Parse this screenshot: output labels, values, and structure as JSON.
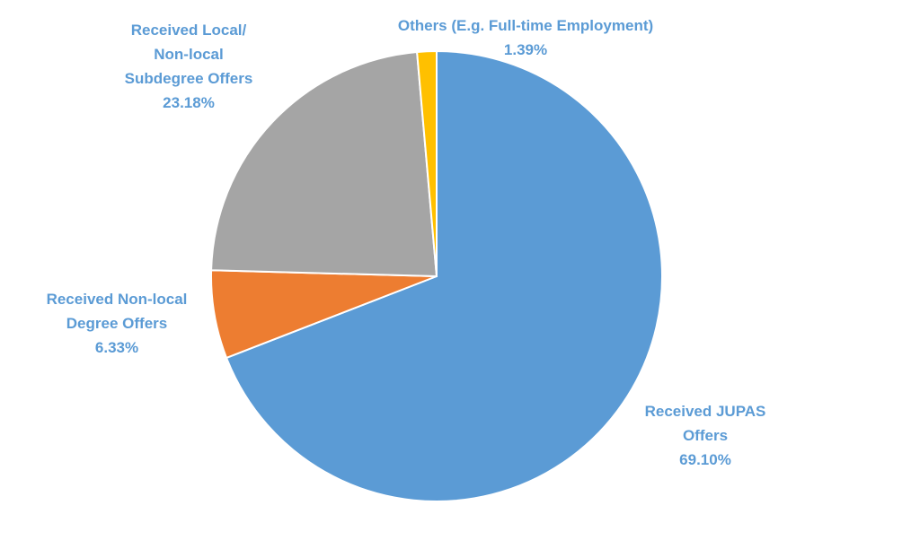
{
  "chart_data": {
    "type": "pie",
    "title": "",
    "start_angle_deg": 0,
    "direction": "clockwise",
    "slices": [
      {
        "label_lines": [
          "Received JUPAS",
          "Offers"
        ],
        "value": 69.1,
        "value_label": "69.10%",
        "color": "#5b9bd5"
      },
      {
        "label_lines": [
          "Received Non-local",
          "Degree Offers"
        ],
        "value": 6.33,
        "value_label": "6.33%",
        "color": "#ed7d31"
      },
      {
        "label_lines": [
          "Received Local/",
          "Non-local",
          "Subdegree Offers"
        ],
        "value": 23.18,
        "value_label": "23.18%",
        "color": "#a5a5a5"
      },
      {
        "label_lines": [
          "Others (E.g. Full-time Employment)"
        ],
        "value": 1.39,
        "value_label": "1.39%",
        "color": "#ffc000"
      }
    ],
    "label_color": "#5b9bd5",
    "legend": "none"
  }
}
